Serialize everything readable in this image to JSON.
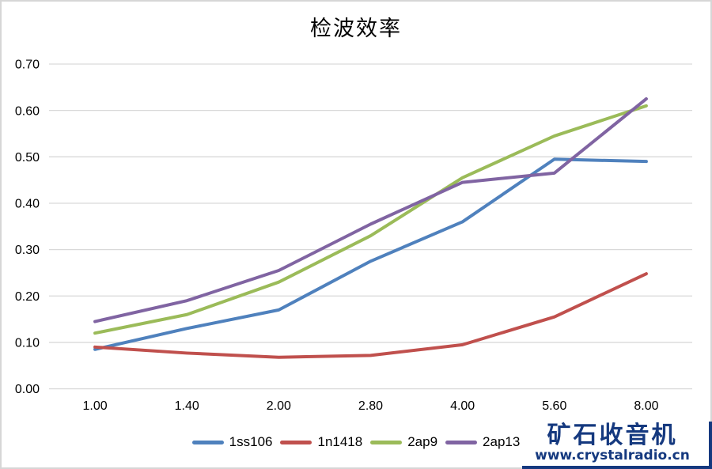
{
  "title": "检波效率",
  "colors": {
    "background": "#ffffff",
    "frame_border": "#d6d6d6",
    "gridline": "#d9d9d9",
    "axis_text": "#000000",
    "watermark_navy": "#15397f"
  },
  "watermark": {
    "name": "矿石收音机",
    "url": "www.crystalradio.cn"
  },
  "chart_data": {
    "type": "line",
    "title": "检波效率",
    "categories": [
      "1.00",
      "1.40",
      "2.00",
      "2.80",
      "4.00",
      "5.60",
      "8.00"
    ],
    "series": [
      {
        "name": "1ss106",
        "color": "#4f81bd",
        "values": [
          0.085,
          0.13,
          0.17,
          0.275,
          0.36,
          0.495,
          0.49
        ]
      },
      {
        "name": "1n1418",
        "color": "#c0504d",
        "values": [
          0.09,
          0.077,
          0.068,
          0.072,
          0.095,
          0.155,
          0.248
        ]
      },
      {
        "name": "2ap9",
        "color": "#9bbb59",
        "values": [
          0.12,
          0.16,
          0.23,
          0.33,
          0.455,
          0.545,
          0.61
        ]
      },
      {
        "name": "2ap13",
        "color": "#8064a2",
        "values": [
          0.145,
          0.19,
          0.255,
          0.355,
          0.445,
          0.465,
          0.625
        ]
      }
    ],
    "y_ticks": [
      "0.00",
      "0.10",
      "0.20",
      "0.30",
      "0.40",
      "0.50",
      "0.60",
      "0.70"
    ],
    "ylim": [
      0,
      0.7
    ],
    "xlabel": "",
    "ylabel": "",
    "grid": true,
    "legend_position": "bottom",
    "line_width": 4
  }
}
